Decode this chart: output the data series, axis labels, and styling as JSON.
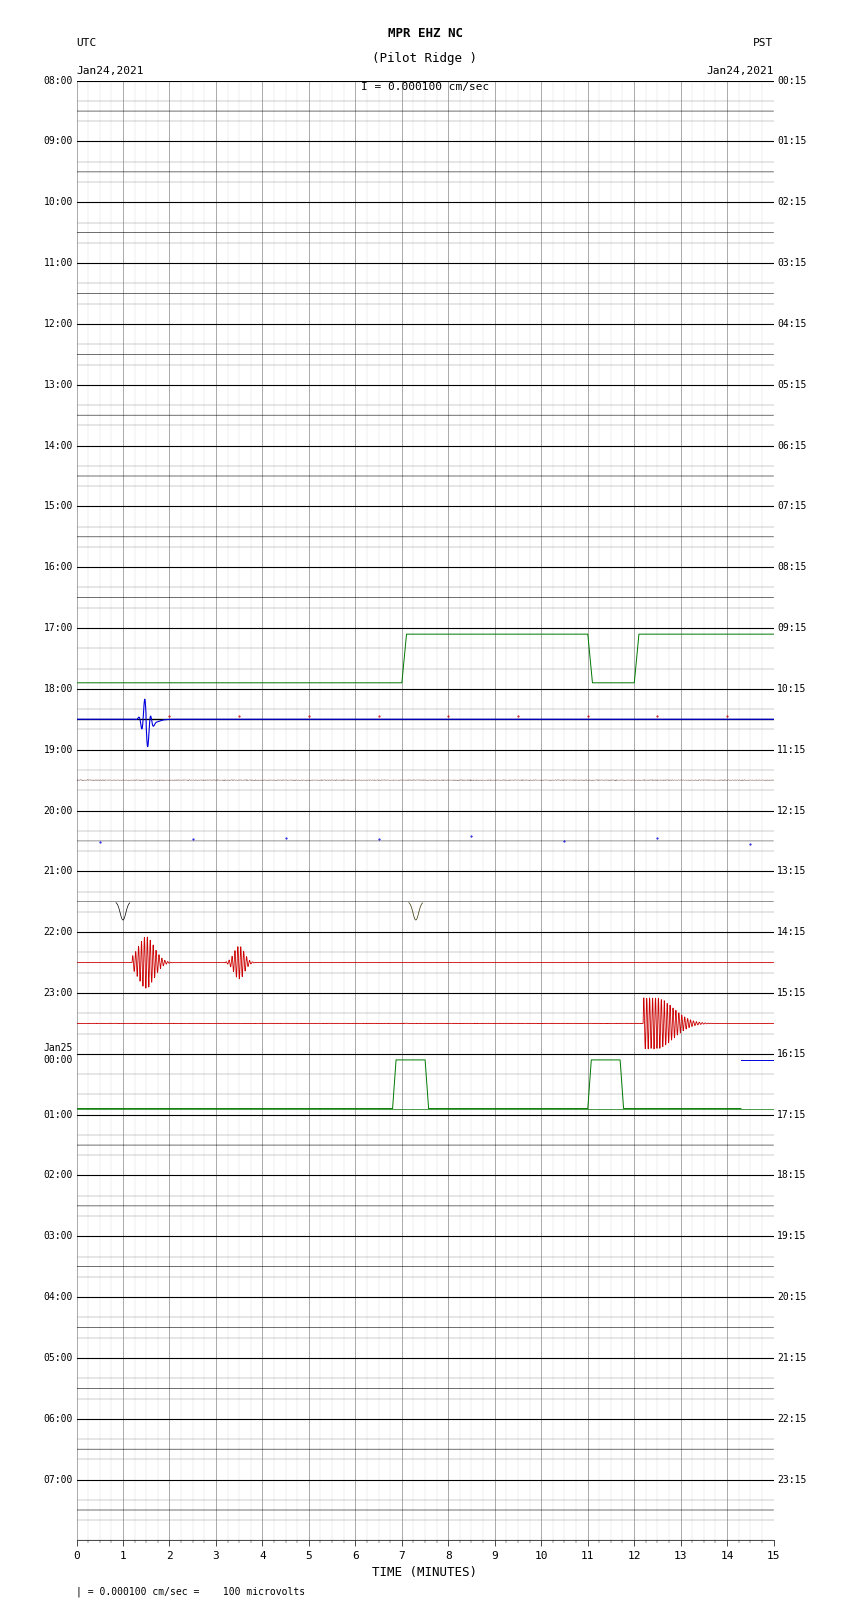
{
  "title_line1": "MPR EHZ NC",
  "title_line2": "(Pilot Ridge )",
  "title_scale": "I = 0.000100 cm/sec",
  "left_header_line1": "UTC",
  "left_header_line2": "Jan24,2021",
  "right_header_line1": "PST",
  "right_header_line2": "Jan24,2021",
  "xlabel": "TIME (MINUTES)",
  "footer_scale": "= 0.000100 cm/sec =    100 microvolts",
  "utc_labels": [
    "08:00",
    "09:00",
    "10:00",
    "11:00",
    "12:00",
    "13:00",
    "14:00",
    "15:00",
    "16:00",
    "17:00",
    "18:00",
    "19:00",
    "20:00",
    "21:00",
    "22:00",
    "23:00",
    "Jan25\n00:00",
    "01:00",
    "02:00",
    "03:00",
    "04:00",
    "05:00",
    "06:00",
    "07:00"
  ],
  "pst_labels": [
    "00:15",
    "01:15",
    "02:15",
    "03:15",
    "04:15",
    "05:15",
    "06:15",
    "07:15",
    "08:15",
    "09:15",
    "10:15",
    "11:15",
    "12:15",
    "13:15",
    "14:15",
    "15:15",
    "16:15",
    "17:15",
    "18:15",
    "19:15",
    "20:15",
    "21:15",
    "22:15",
    "23:15"
  ],
  "num_rows": 24,
  "xmin": 0,
  "xmax": 15,
  "bg_color": "#ffffff",
  "grid_major_color": "#888888",
  "grid_minor_color": "#cccccc",
  "row_line_color": "#000000",
  "trace_color_dark": "#000000",
  "trace_color_red": "#cc0000",
  "trace_color_green": "#007700",
  "trace_color_blue": "#0000dd"
}
